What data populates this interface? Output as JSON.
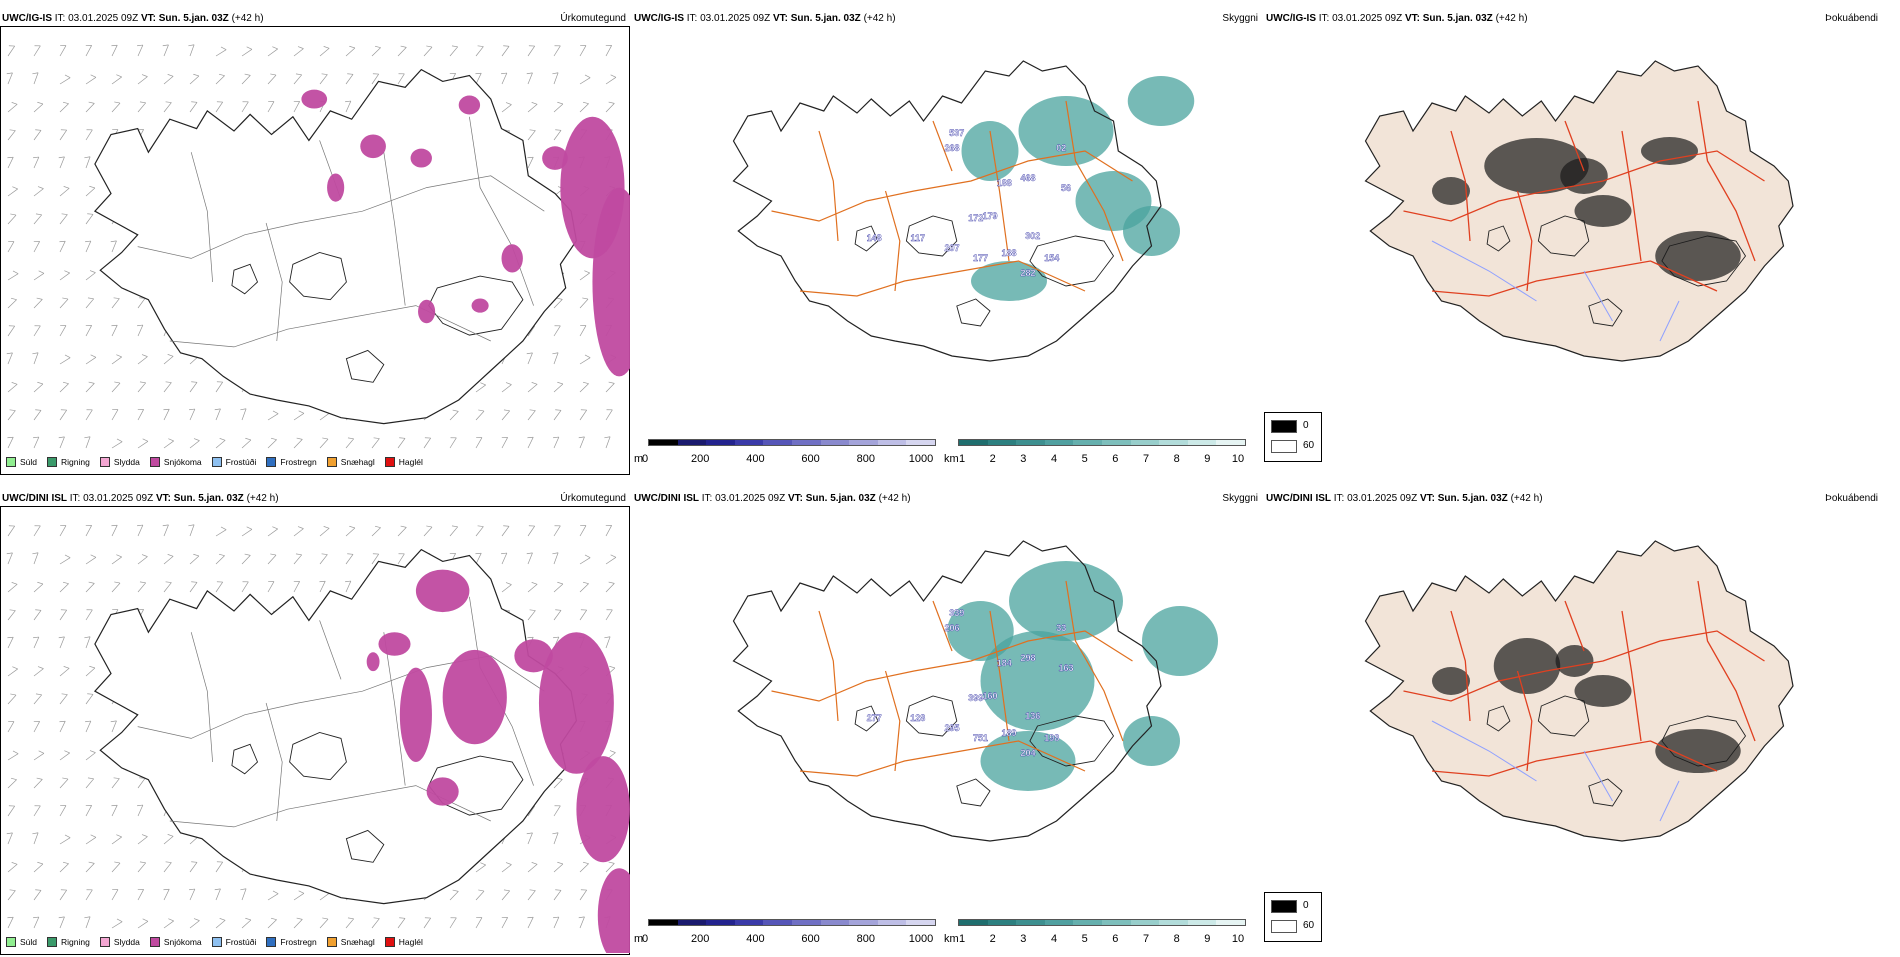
{
  "rows": [
    {
      "model": "UWC/IG-IS",
      "it_label": "IT:",
      "it_value": "03.01.2025 09Z",
      "vt_label": "VT:",
      "vt_value": "Sun. 5.jan. 03Z",
      "lead": "(+42 h)",
      "cloud_labels": [
        "537",
        "268",
        "148",
        "117",
        "172",
        "207",
        "177",
        "188",
        "282",
        "302",
        "154",
        "179",
        "188",
        "468",
        "56",
        "02"
      ]
    },
    {
      "model": "UWC/DINI ISL",
      "it_label": "IT:",
      "it_value": "03.01.2025 09Z",
      "vt_label": "VT:",
      "vt_value": "Sun. 5.jan. 03Z",
      "lead": "(+42 h)",
      "cloud_labels": [
        "339",
        "206",
        "277",
        "128",
        "399",
        "295",
        "751",
        "189",
        "204",
        "136",
        "198",
        "160",
        "184",
        "298",
        "163",
        "33"
      ]
    }
  ],
  "panel_titles": {
    "precip": "Úrkomutegund",
    "visibility": "Skyggni",
    "fog": "Þokuábendi"
  },
  "precip_legend": [
    {
      "label": "Súld",
      "color": "#90ee90"
    },
    {
      "label": "Rigning",
      "color": "#3a9a6a"
    },
    {
      "label": "Slydda",
      "color": "#f4a6d2"
    },
    {
      "label": "Snjókoma",
      "color": "#c04aa0"
    },
    {
      "label": "Frostúði",
      "color": "#8ec0f0"
    },
    {
      "label": "Frostregn",
      "color": "#2f6fc0"
    },
    {
      "label": "Snæhagl",
      "color": "#f0a030"
    },
    {
      "label": "Haglél",
      "color": "#e01010"
    }
  ],
  "cloud_base_bar": {
    "unit": "m",
    "ticks": [
      "0",
      "200",
      "400",
      "600",
      "800",
      "1000"
    ],
    "colors": [
      "#000000",
      "#1a1a6e",
      "#23238e",
      "#3a3aa8",
      "#5656b8",
      "#7070c4",
      "#8a8ace",
      "#a4a4da",
      "#bebee6",
      "#d6d6f0"
    ]
  },
  "visibility_bar": {
    "unit": "km",
    "ticks": [
      "1",
      "2",
      "3",
      "4",
      "5",
      "6",
      "7",
      "8",
      "9",
      "10"
    ],
    "colors": [
      "#1f6e6e",
      "#2d8080",
      "#3e9090",
      "#50a0a0",
      "#66b0ae",
      "#7ebfbc",
      "#98cecb",
      "#b2dcda",
      "#cce9e7",
      "#e6f4f3"
    ]
  },
  "fog_legend": [
    {
      "label": "0",
      "color": "#000000"
    },
    {
      "label": "60",
      "color": "#ffffff"
    }
  ],
  "colors": {
    "land": "#f2e4d8",
    "snow": "#c04aa0",
    "roads": "#e07020",
    "roads_fog": "#e04020",
    "rivers": "#8fa0ff",
    "visibility": "#4aa39e"
  }
}
